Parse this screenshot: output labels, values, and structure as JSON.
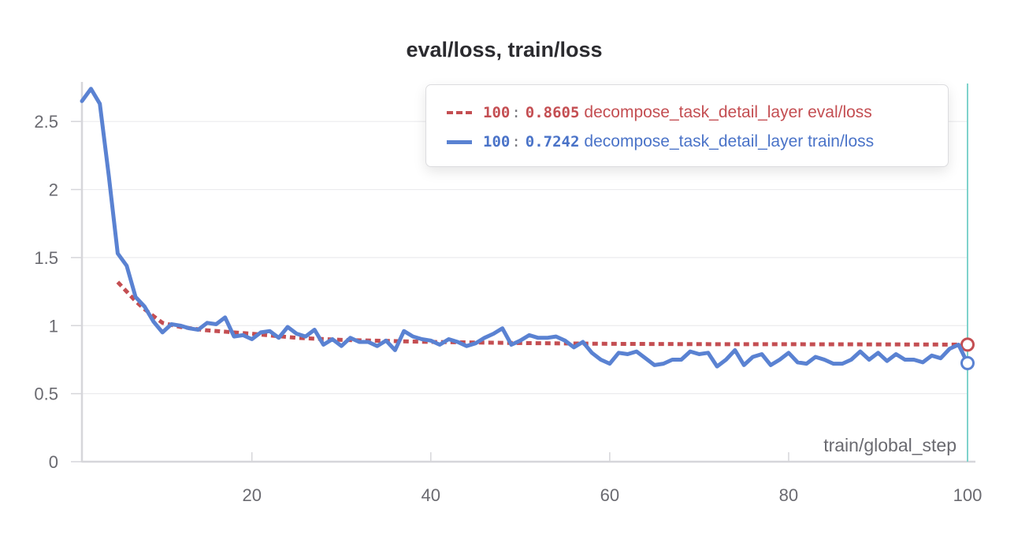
{
  "chart_data": {
    "type": "line",
    "title": "eval/loss, train/loss",
    "xlabel": "train/global_step",
    "ylabel": "",
    "xlim": [
      1,
      100
    ],
    "ylim": [
      0,
      2.75
    ],
    "x_ticks": [
      20,
      40,
      60,
      80,
      100
    ],
    "y_ticks": [
      0,
      0.5,
      1,
      1.5,
      2,
      2.5
    ],
    "x_tick_labels": [
      "20",
      "40",
      "60",
      "80",
      "100"
    ],
    "y_tick_labels": [
      "0",
      "0.5",
      "1",
      "1.5",
      "2",
      "2.5"
    ],
    "grid": true,
    "legend_position": "top-right",
    "hover_x": 100,
    "series": [
      {
        "name": "decompose_task_detail_layer eval/loss",
        "color": "#c44e52",
        "style": "dashed",
        "hover_step": "100",
        "hover_value": "0.8605",
        "x": [
          5,
          6,
          7,
          8,
          9,
          10,
          12,
          15,
          20,
          25,
          30,
          40,
          50,
          60,
          70,
          80,
          90,
          100
        ],
        "y": [
          1.32,
          1.25,
          1.18,
          1.12,
          1.07,
          1.02,
          0.99,
          0.965,
          0.94,
          0.91,
          0.895,
          0.88,
          0.872,
          0.866,
          0.864,
          0.863,
          0.862,
          0.8605
        ]
      },
      {
        "name": "decompose_task_detail_layer train/loss",
        "color": "#5a82d2",
        "style": "solid",
        "hover_step": "100",
        "hover_value": "0.7242",
        "x": [
          1,
          2,
          3,
          4,
          5,
          6,
          7,
          8,
          9,
          10,
          11,
          12,
          13,
          14,
          15,
          16,
          17,
          18,
          19,
          20,
          21,
          22,
          23,
          24,
          25,
          26,
          27,
          28,
          29,
          30,
          31,
          32,
          33,
          34,
          35,
          36,
          37,
          38,
          39,
          40,
          41,
          42,
          43,
          44,
          45,
          46,
          47,
          48,
          49,
          50,
          51,
          52,
          53,
          54,
          55,
          56,
          57,
          58,
          59,
          60,
          61,
          62,
          63,
          64,
          65,
          66,
          67,
          68,
          69,
          70,
          71,
          72,
          73,
          74,
          75,
          76,
          77,
          78,
          79,
          80,
          81,
          82,
          83,
          84,
          85,
          86,
          87,
          88,
          89,
          90,
          91,
          92,
          93,
          94,
          95,
          96,
          97,
          98,
          99,
          100
        ],
        "y": [
          2.65,
          2.74,
          2.63,
          2.1,
          1.53,
          1.44,
          1.21,
          1.14,
          1.03,
          0.95,
          1.01,
          1.0,
          0.98,
          0.97,
          1.02,
          1.01,
          1.06,
          0.92,
          0.93,
          0.9,
          0.95,
          0.96,
          0.91,
          0.99,
          0.94,
          0.92,
          0.97,
          0.86,
          0.9,
          0.85,
          0.91,
          0.88,
          0.88,
          0.85,
          0.89,
          0.82,
          0.96,
          0.92,
          0.9,
          0.89,
          0.86,
          0.9,
          0.88,
          0.85,
          0.87,
          0.91,
          0.94,
          0.98,
          0.86,
          0.89,
          0.93,
          0.91,
          0.91,
          0.92,
          0.89,
          0.84,
          0.88,
          0.8,
          0.75,
          0.72,
          0.8,
          0.79,
          0.81,
          0.76,
          0.71,
          0.72,
          0.75,
          0.75,
          0.81,
          0.79,
          0.8,
          0.7,
          0.75,
          0.82,
          0.71,
          0.77,
          0.79,
          0.71,
          0.75,
          0.8,
          0.73,
          0.72,
          0.77,
          0.75,
          0.72,
          0.72,
          0.75,
          0.81,
          0.75,
          0.8,
          0.74,
          0.79,
          0.75,
          0.75,
          0.73,
          0.78,
          0.76,
          0.83,
          0.86,
          0.7242
        ]
      }
    ]
  }
}
